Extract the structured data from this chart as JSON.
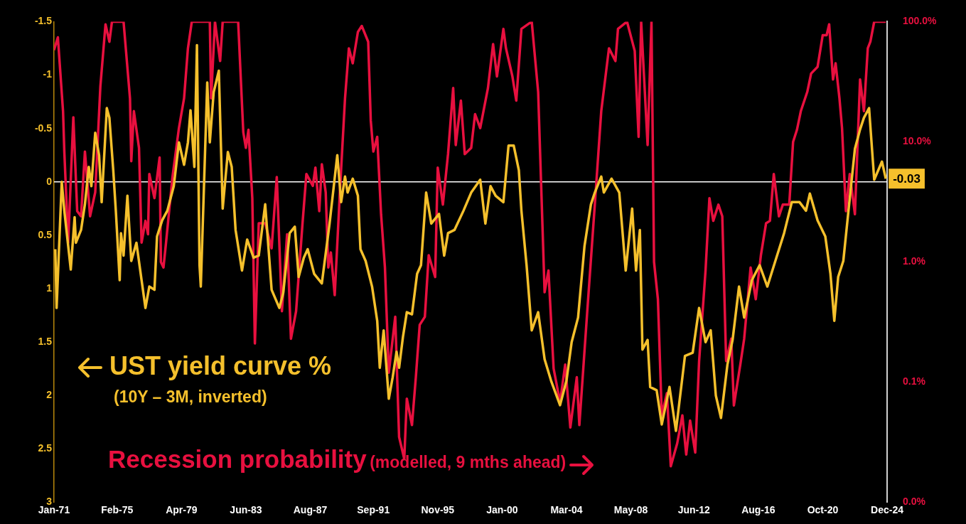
{
  "chart_data": {
    "type": "line",
    "series": [
      {
        "name": "UST yield curve %",
        "color": "#f5c02c",
        "axis": "y",
        "x": [
          "1971-02",
          "1971-03",
          "1971-07",
          "1971-09",
          "1972-02",
          "1972-05",
          "1972-06",
          "1972-10",
          "1973-01",
          "1973-04",
          "1973-06",
          "1973-09",
          "1973-12",
          "1974-02",
          "1974-06",
          "1974-08",
          "1974-11",
          "1975-01",
          "1975-04",
          "1975-05",
          "1975-07",
          "1975-10",
          "1976-01",
          "1976-05",
          "1976-09",
          "1976-12",
          "1977-03",
          "1977-07",
          "1977-09",
          "1978-01",
          "1978-05",
          "1978-10",
          "1979-02",
          "1979-06",
          "1979-09",
          "1979-11",
          "1980-02",
          "1980-04",
          "1980-06",
          "1980-07",
          "1980-12",
          "1981-02",
          "1981-05",
          "1981-09",
          "1981-12",
          "1982-04",
          "1982-07",
          "1982-10",
          "1983-03",
          "1983-07",
          "1983-12",
          "1984-04",
          "1984-09",
          "1985-02",
          "1985-08",
          "1985-11",
          "1986-04",
          "1986-08",
          "1986-11",
          "1987-03",
          "1987-06",
          "1987-11",
          "1988-05",
          "1988-11",
          "1989-05",
          "1989-08",
          "1989-11",
          "1990-01",
          "1990-05",
          "1990-09",
          "1990-11",
          "1991-03",
          "1991-08",
          "1991-12",
          "1992-02",
          "1992-05",
          "1992-09",
          "1992-12",
          "1993-03",
          "1993-05",
          "1993-08",
          "1993-11",
          "1994-03",
          "1994-07",
          "1994-10",
          "1995-02",
          "1995-06",
          "1995-12",
          "1996-04",
          "1996-07",
          "1996-12",
          "1997-07",
          "1998-01",
          "1998-08",
          "1998-12",
          "1999-04",
          "1999-08",
          "2000-02",
          "2000-06",
          "2000-10",
          "2001-02",
          "2001-04",
          "2001-08",
          "2001-12",
          "2002-05",
          "2002-10",
          "2003-03",
          "2003-10",
          "2004-03",
          "2004-07",
          "2004-12",
          "2005-05",
          "2005-10",
          "2006-01",
          "2006-06",
          "2006-08",
          "2007-02",
          "2007-08",
          "2008-01",
          "2008-06",
          "2008-09",
          "2008-12",
          "2009-02",
          "2009-06",
          "2009-08",
          "2010-01",
          "2010-05",
          "2010-11",
          "2011-04",
          "2011-11",
          "2012-05",
          "2012-10",
          "2013-03",
          "2013-07",
          "2013-11",
          "2014-03",
          "2014-08",
          "2014-12",
          "2015-05",
          "2015-09",
          "2016-03",
          "2016-09",
          "2017-03",
          "2017-10",
          "2018-04",
          "2018-10",
          "2019-04",
          "2019-09",
          "2019-12",
          "2020-06",
          "2020-12",
          "2021-04",
          "2021-07",
          "2021-10",
          "2022-02",
          "2022-06",
          "2022-11",
          "2023-03",
          "2023-06",
          "2023-10",
          "2024-02",
          "2024-08",
          "2024-11"
        ],
        "values": [
          0.63,
          1.18,
          0,
          0.27,
          0.82,
          0.33,
          0.57,
          0.45,
          0.21,
          -0.14,
          0.04,
          -0.46,
          -0.25,
          0.19,
          -0.69,
          -0.6,
          -0.11,
          0.27,
          0.92,
          0.48,
          0.69,
          0.13,
          0.74,
          0.57,
          0.92,
          1.18,
          0.98,
          1.01,
          0.51,
          0.36,
          0.27,
          0.04,
          -0.37,
          -0.16,
          -0.37,
          -0.67,
          -0.14,
          -1.28,
          0.78,
          0.98,
          -0.93,
          -0.37,
          -0.84,
          -1.04,
          0.25,
          -0.28,
          -0.14,
          0.45,
          0.83,
          0.54,
          0.71,
          0.69,
          0.21,
          1.01,
          1.18,
          1.04,
          0.48,
          0.42,
          0.89,
          0.71,
          0.63,
          0.86,
          0.95,
          0.39,
          -0.25,
          0.19,
          -0.05,
          0.1,
          -0.03,
          0.13,
          0.63,
          0.74,
          0.98,
          1.3,
          1.74,
          1.39,
          2.03,
          1.83,
          1.59,
          1.74,
          1.45,
          1.22,
          1.24,
          0.86,
          0.78,
          0.1,
          0.39,
          0.3,
          0.69,
          0.48,
          0.45,
          0.27,
          0.1,
          -0.02,
          0.39,
          0.04,
          0.13,
          0.19,
          -0.34,
          -0.34,
          -0.11,
          0.27,
          0.78,
          1.39,
          1.22,
          1.66,
          1.86,
          2.09,
          1.86,
          1.5,
          1.27,
          0.6,
          0.21,
          0.1,
          -0.05,
          0.1,
          -0.03,
          0.1,
          0.83,
          0.25,
          0.83,
          0.45,
          1.57,
          1.48,
          1.92,
          1.95,
          2.27,
          1.92,
          2.33,
          1.63,
          1.6,
          1.18,
          1.5,
          1.39,
          2.0,
          2.21,
          1.71,
          1.48,
          0.98,
          1.27,
          0.92,
          0.78,
          0.98,
          0.71,
          0.48,
          0.19,
          0.19,
          0.27,
          0.11,
          0.36,
          0.51,
          0.86,
          1.3,
          0.89,
          0.74,
          0.27,
          -0.31,
          -0.49,
          -0.6,
          -0.69,
          -0.02,
          -0.19,
          -0.03
        ]
      },
      {
        "name": "Recession probability",
        "color": "#e8103f",
        "axis": "y2",
        "x": [
          "1971-01",
          "1971-04",
          "1971-08",
          "1971-09",
          "1971-12",
          "1972-04",
          "1972-07",
          "1972-10",
          "1973-01",
          "1973-05",
          "1973-09",
          "1974-01",
          "1974-05",
          "1974-08",
          "1974-10",
          "1975-07",
          "1975-12",
          "1976-01",
          "1976-03",
          "1976-07",
          "1976-09",
          "1976-12",
          "1977-02",
          "1977-03",
          "1977-07",
          "1977-11",
          "1977-12",
          "1978-02",
          "1978-04",
          "1978-09",
          "1979-02",
          "1979-06",
          "1979-09",
          "1979-12",
          "1981-02",
          "1981-03",
          "1981-06",
          "1981-10",
          "1981-12",
          "1982-12",
          "1983-04",
          "1983-06",
          "1983-08",
          "1983-11",
          "1984-01",
          "1984-04",
          "1984-09",
          "1985-02",
          "1985-06",
          "1985-10",
          "1986-02",
          "1986-05",
          "1986-09",
          "1987-02",
          "1987-05",
          "1987-10",
          "1987-12",
          "1988-03",
          "1988-05",
          "1988-08",
          "1988-10",
          "1988-12",
          "1989-03",
          "1989-07",
          "1989-11",
          "1990-02",
          "1990-05",
          "1990-09",
          "1990-12",
          "1991-05",
          "1991-07",
          "1991-09",
          "1991-12",
          "1992-03",
          "1992-06",
          "1992-09",
          "1993-02",
          "1993-05",
          "1993-09",
          "1993-11",
          "1994-03",
          "1994-06",
          "1994-09",
          "1995-01",
          "1995-04",
          "1995-09",
          "1995-11",
          "1996-03",
          "1996-07",
          "1996-11",
          "1997-01",
          "1997-05",
          "1997-08",
          "1998-01",
          "1998-04",
          "1998-08",
          "1999-02",
          "1999-06",
          "1999-09",
          "2000-02",
          "2000-04",
          "2000-09",
          "2000-12",
          "2001-04",
          "2001-12",
          "2002-05",
          "2002-10",
          "2003-01",
          "2003-05",
          "2003-10",
          "2004-02",
          "2004-06",
          "2004-11",
          "2005-01",
          "2005-07",
          "2006-01",
          "2006-06",
          "2006-12",
          "2007-05",
          "2007-07",
          "2008-02",
          "2008-08",
          "2008-11",
          "2009-01",
          "2009-06",
          "2009-09",
          "2009-11",
          "2010-02",
          "2010-05",
          "2010-09",
          "2010-12",
          "2011-05",
          "2011-09",
          "2011-12",
          "2012-03",
          "2012-07",
          "2012-10",
          "2013-03",
          "2013-06",
          "2013-09",
          "2014-01",
          "2014-04",
          "2014-07",
          "2014-11",
          "2015-01",
          "2015-06",
          "2015-09",
          "2016-02",
          "2016-06",
          "2016-10",
          "2017-02",
          "2017-05",
          "2017-08",
          "2017-12",
          "2018-03",
          "2018-08",
          "2018-11",
          "2019-02",
          "2019-05",
          "2019-10",
          "2020-01",
          "2020-06",
          "2020-10",
          "2021-01",
          "2021-03",
          "2021-06",
          "2021-08",
          "2021-11",
          "2022-01",
          "2022-04",
          "2022-07",
          "2022-11",
          "2023-03",
          "2023-06",
          "2023-09",
          "2023-11",
          "2024-02",
          "2024-11"
        ],
        "values": [
          58,
          74,
          18,
          8.3,
          1.45,
          16,
          2.65,
          2.4,
          8.3,
          2.4,
          3.8,
          29,
          95,
          68,
          100,
          100,
          23,
          6.9,
          18,
          8.9,
          1.45,
          2.2,
          1.7,
          5.4,
          3.4,
          7.4,
          1.0,
          0.9,
          1.45,
          5.1,
          13,
          23,
          60,
          100,
          100,
          23,
          100,
          47,
          100,
          100,
          12,
          8.9,
          12.6,
          3.4,
          0.21,
          2.1,
          2.1,
          1.3,
          5.1,
          0.39,
          1.7,
          0.23,
          0.39,
          2.1,
          5.4,
          4.3,
          6.1,
          2.65,
          6.5,
          3.8,
          0.9,
          1.2,
          0.53,
          3.8,
          23,
          60,
          45,
          82,
          92,
          68,
          15,
          8.3,
          11,
          2.5,
          0.9,
          0.12,
          0.35,
          0.035,
          0.023,
          0.073,
          0.044,
          0.11,
          0.3,
          0.35,
          1.14,
          0.75,
          6.1,
          3.0,
          7.9,
          28,
          9.4,
          22,
          7.9,
          8.9,
          17,
          13,
          28,
          65,
          35,
          87,
          60,
          35,
          22,
          87,
          100,
          26,
          0.56,
          0.85,
          0.13,
          0.068,
          0.14,
          0.042,
          0.11,
          0.044,
          0.37,
          3.0,
          18,
          60,
          47,
          87,
          100,
          57,
          11,
          100,
          9.4,
          100,
          1.0,
          0.49,
          0.053,
          0.081,
          0.02,
          0.031,
          0.053,
          0.025,
          0.048,
          0.026,
          0.15,
          0.85,
          3.4,
          2.2,
          3.0,
          2.4,
          0.15,
          0.23,
          0.064,
          0.14,
          0.23,
          0.9,
          0.49,
          1.14,
          2.1,
          2.2,
          5.4,
          2.4,
          3.0,
          3.0,
          10,
          12.6,
          18,
          26,
          37,
          42,
          77,
          77,
          95,
          33,
          45,
          23,
          13,
          2.65,
          5.4,
          2.5,
          33,
          18,
          60,
          68,
          100,
          100
        ]
      }
    ],
    "annotations": [
      "(10Y – 3M, inverted)",
      "(modelled, 9 mths ahead)",
      {
        "text": "-0.03",
        "x": "2024-11",
        "y": -0.03
      }
    ],
    "xlim": [
      "1971-01",
      "2024-12"
    ],
    "xticks": [
      {
        "value": "1971-01",
        "label": "Jan-71"
      },
      {
        "value": "1975-02",
        "label": "Feb-75"
      },
      {
        "value": "1979-04",
        "label": "Apr-79"
      },
      {
        "value": "1983-06",
        "label": "Jun-83"
      },
      {
        "value": "1987-08",
        "label": "Aug-87"
      },
      {
        "value": "1991-09",
        "label": "Sep-91"
      },
      {
        "value": "1995-11",
        "label": "Nov-95"
      },
      {
        "value": "2000-01",
        "label": "Jan-00"
      },
      {
        "value": "2004-03",
        "label": "Mar-04"
      },
      {
        "value": "2008-05",
        "label": "May-08"
      },
      {
        "value": "2012-06",
        "label": "Jun-12"
      },
      {
        "value": "2016-08",
        "label": "Aug-16"
      },
      {
        "value": "2020-10",
        "label": "Oct-20"
      },
      {
        "value": "2024-12",
        "label": "Dec-24"
      }
    ],
    "ylim": [
      3,
      -1.5
    ],
    "yticks": [
      -1.5,
      -1,
      -0.5,
      0,
      0.5,
      1,
      1.5,
      2,
      2.5,
      3
    ],
    "y2lim": [
      0.01,
      100
    ],
    "y2ticks": [
      {
        "value": 0.01,
        "label": "0.0%"
      },
      {
        "value": 0.1,
        "label": "0.1%"
      },
      {
        "value": 1,
        "label": "1.0%"
      },
      {
        "value": 10,
        "label": "10.0%"
      },
      {
        "value": 100,
        "label": "100.0%"
      }
    ],
    "log": "y2",
    "ref_lines": [
      {
        "axis": "y",
        "value": 0,
        "color": "#ffffff"
      }
    ],
    "line_style": "solid",
    "marker": "none"
  }
}
